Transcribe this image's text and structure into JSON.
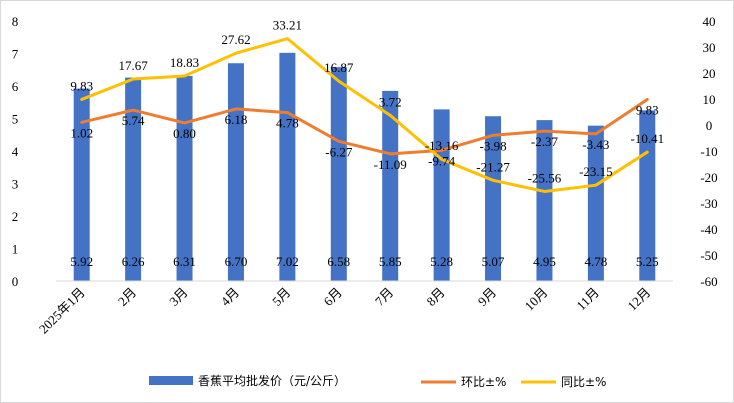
{
  "chart_data": {
    "type": "bar",
    "title": "",
    "xlabel": "",
    "ylabel": "",
    "categories": [
      "2025年1月",
      "2月",
      "3月",
      "4月",
      "5月",
      "6月",
      "7月",
      "8月",
      "9月",
      "10月",
      "11月",
      "12月"
    ],
    "series": [
      {
        "name": "香蕉平均批发价（元/公斤）",
        "type": "bar",
        "axis": "left",
        "color": "#4472C4",
        "values": [
          5.92,
          6.26,
          6.31,
          6.7,
          7.02,
          6.58,
          5.85,
          5.28,
          5.07,
          4.95,
          4.78,
          5.25
        ],
        "labels": [
          "5.92",
          "6.26",
          "6.31",
          "6.70",
          "7.02",
          "6.58",
          "5.85",
          "5.28",
          "5.07",
          "4.95",
          "4.78",
          "5.25"
        ]
      },
      {
        "name": "环比±%",
        "type": "line",
        "axis": "right",
        "color": "#ED7D31",
        "values": [
          1.02,
          5.74,
          0.8,
          6.18,
          4.78,
          -6.27,
          -11.09,
          -9.74,
          -3.98,
          -2.37,
          -3.43,
          9.83
        ],
        "labels": [
          "1.02",
          "5.74",
          "0.80",
          "6.18",
          "4.78",
          "-6.27",
          "-11.09",
          "-9.74",
          "-3.98",
          "-2.37",
          "-3.43",
          "9.83"
        ]
      },
      {
        "name": "同比±%",
        "type": "line",
        "axis": "right",
        "color": "#FFC000",
        "values": [
          9.83,
          17.67,
          18.83,
          27.62,
          33.21,
          16.87,
          3.72,
          -13.16,
          -21.27,
          -25.56,
          -23.15,
          -10.41
        ],
        "labels": [
          "9.83",
          "17.67",
          "18.83",
          "27.62",
          "33.21",
          "16.87",
          "3.72",
          "-13.16",
          "-21.27",
          "-25.56",
          "-23.15",
          "-10.41"
        ]
      }
    ],
    "left_axis": {
      "min": 0,
      "max": 8,
      "ticks": [
        "0",
        "1",
        "2",
        "3",
        "4",
        "5",
        "6",
        "7",
        "8"
      ]
    },
    "right_axis": {
      "min": -60,
      "max": 40,
      "ticks": [
        "-60",
        "-50",
        "-40",
        "-30",
        "-20",
        "-10",
        "0",
        "10",
        "20",
        "30",
        "40"
      ]
    },
    "legend": {
      "position": "bottom",
      "items": [
        "香蕉平均批发价（元/公斤）",
        "环比±%",
        "同比±%"
      ]
    },
    "grid": false
  }
}
